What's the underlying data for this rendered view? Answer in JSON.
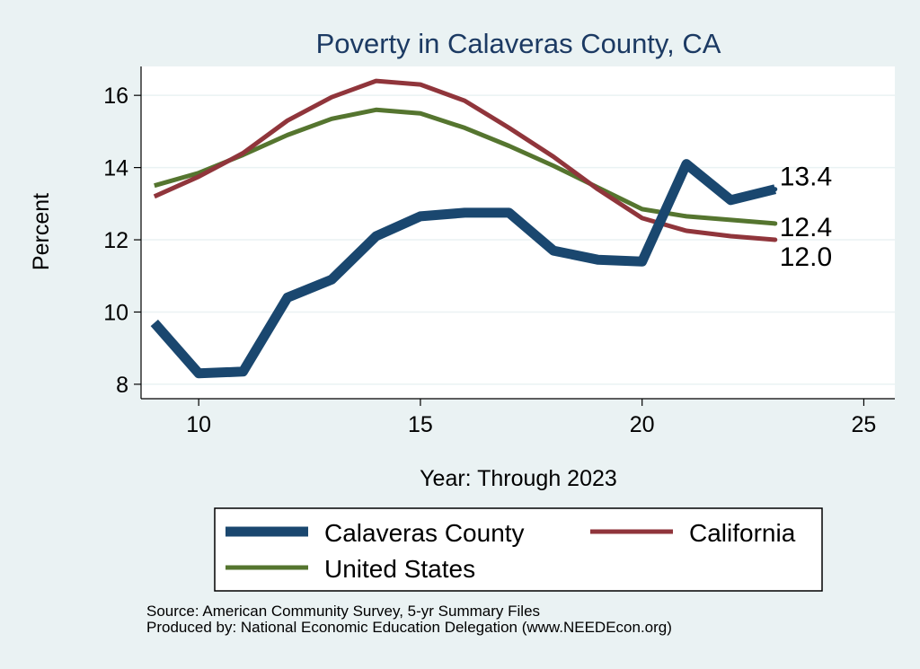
{
  "chart_data": {
    "type": "line",
    "title": "Poverty in Calaveras County, CA",
    "xlabel": "Year: Through 2023",
    "ylabel": "Percent",
    "xlim": [
      8.7,
      25.7
    ],
    "ylim": [
      7.6,
      16.8
    ],
    "xticks": [
      10,
      15,
      20,
      25
    ],
    "yticks": [
      8,
      10,
      12,
      14,
      16
    ],
    "grid": true,
    "legend_position": "bottom",
    "series": [
      {
        "name": "Calaveras County",
        "color": "#1a476f",
        "x": [
          9,
          10,
          11,
          12,
          13,
          14,
          15,
          16,
          17,
          18,
          19,
          20,
          21,
          22,
          23
        ],
        "y": [
          9.7,
          8.3,
          8.35,
          10.4,
          10.9,
          12.1,
          12.65,
          12.75,
          12.75,
          11.7,
          11.45,
          11.4,
          14.1,
          13.1,
          13.4
        ],
        "end_label": "13.4"
      },
      {
        "name": "California",
        "color": "#90353b",
        "x": [
          9,
          10,
          11,
          12,
          13,
          14,
          15,
          16,
          17,
          18,
          19,
          20,
          21,
          22,
          23
        ],
        "y": [
          13.2,
          13.75,
          14.4,
          15.3,
          15.95,
          16.4,
          16.3,
          15.85,
          15.1,
          14.3,
          13.4,
          12.6,
          12.25,
          12.1,
          12.0
        ],
        "end_label": "12.0"
      },
      {
        "name": "United States",
        "color": "#55752f",
        "x": [
          9,
          10,
          11,
          12,
          13,
          14,
          15,
          16,
          17,
          18,
          19,
          20,
          21,
          22,
          23
        ],
        "y": [
          13.5,
          13.85,
          14.35,
          14.9,
          15.35,
          15.6,
          15.5,
          15.1,
          14.6,
          14.05,
          13.45,
          12.85,
          12.65,
          12.55,
          12.45
        ],
        "end_label": "12.4"
      }
    ]
  },
  "notes": {
    "source": "Source: American Community Survey, 5-yr Summary Files",
    "produced_by": "Produced by: National Economic Education Delegation (www.NEEDEcon.org)"
  }
}
